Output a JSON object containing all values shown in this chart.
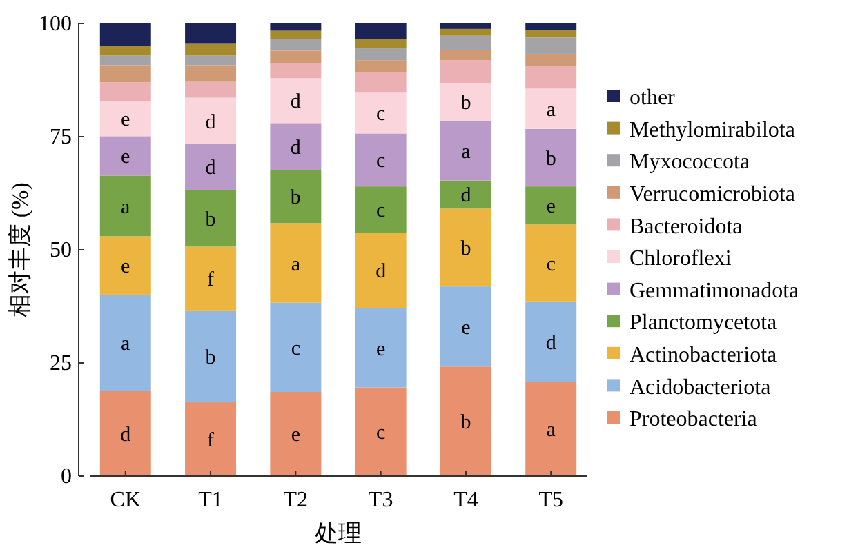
{
  "chart_data": {
    "type": "bar",
    "stacked": true,
    "xlabel": "处理",
    "ylabel": "相对丰度 (%)",
    "categories": [
      "CK",
      "T1",
      "T2",
      "T3",
      "T4",
      "T5"
    ],
    "ylim": [
      0,
      100
    ],
    "yticks": [
      0,
      25,
      50,
      75,
      100
    ],
    "grid": false,
    "legend": "right",
    "series": [
      {
        "name": "Proteobacteria",
        "color": "#e9906f",
        "values": [
          18.8,
          16.3,
          18.6,
          19.6,
          24.2,
          20.8
        ],
        "value_labels": [
          "d",
          "f",
          "e",
          "c",
          "b",
          "a"
        ]
      },
      {
        "name": "Acidobacteriota",
        "color": "#93b9e2",
        "values": [
          21.3,
          20.3,
          19.7,
          17.5,
          17.7,
          17.8
        ],
        "value_labels": [
          "a",
          "b",
          "c",
          "e",
          "e",
          "d"
        ]
      },
      {
        "name": "Actinobacteriota",
        "color": "#ebb540",
        "values": [
          12.9,
          14.1,
          17.6,
          16.7,
          17.2,
          17.0
        ],
        "value_labels": [
          "e",
          "f",
          "a",
          "d",
          "b",
          "c"
        ]
      },
      {
        "name": "Planctomycetota",
        "color": "#77a446",
        "values": [
          13.4,
          12.5,
          11.7,
          10.2,
          6.2,
          8.4
        ],
        "value_labels": [
          "a",
          "b",
          "b",
          "c",
          "d",
          "e"
        ]
      },
      {
        "name": "Gemmatimonadota",
        "color": "#b99ac8",
        "values": [
          8.7,
          10.2,
          10.4,
          11.7,
          13.1,
          12.7
        ],
        "value_labels": [
          "e",
          "d",
          "d",
          "c",
          "a",
          "b"
        ]
      },
      {
        "name": "Chloroflexi",
        "color": "#fad6dc",
        "values": [
          7.8,
          10.2,
          9.9,
          9.0,
          8.5,
          8.9
        ],
        "value_labels": [
          "e",
          "d",
          "d",
          "c",
          "b",
          "a"
        ]
      },
      {
        "name": "Bacteroidota",
        "color": "#eab0b4",
        "values": [
          4.1,
          3.5,
          3.4,
          4.6,
          5.0,
          5.0
        ]
      },
      {
        "name": "Verrucomicrobiota",
        "color": "#d09a74",
        "values": [
          3.8,
          3.7,
          2.7,
          2.6,
          2.3,
          2.7
        ]
      },
      {
        "name": "Myxococcota",
        "color": "#a4a4a8",
        "values": [
          2.1,
          2.1,
          2.6,
          2.6,
          3.1,
          3.6
        ]
      },
      {
        "name": "Methylomirabilota",
        "color": "#a58a2e",
        "values": [
          2.1,
          2.6,
          1.8,
          2.1,
          1.5,
          1.6
        ]
      },
      {
        "name": "other",
        "color": "#1c2457",
        "values": [
          5.0,
          4.5,
          1.6,
          3.4,
          1.2,
          1.5
        ]
      }
    ]
  }
}
